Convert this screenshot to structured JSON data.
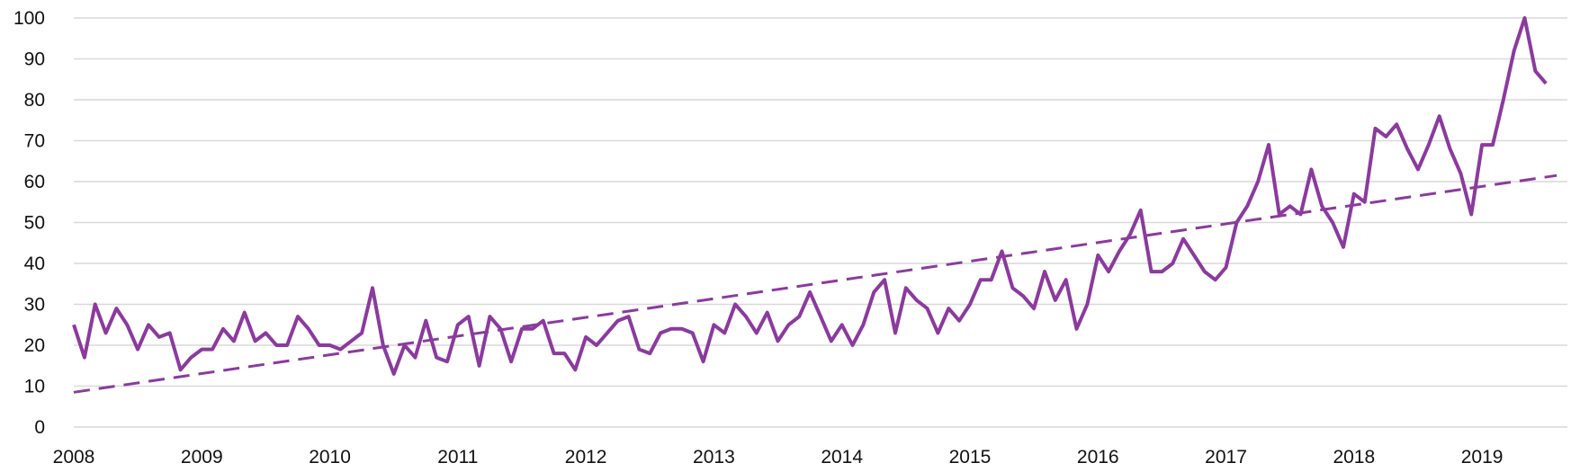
{
  "chart_data": {
    "type": "line",
    "title": "",
    "xlabel": "",
    "ylabel": "",
    "ylim": [
      0,
      100
    ],
    "xlim": [
      2008,
      2019.667
    ],
    "yticks": [
      0,
      10,
      20,
      30,
      40,
      50,
      60,
      70,
      80,
      90,
      100
    ],
    "xticks": [
      "2008",
      "2009",
      "2010",
      "2011",
      "2012",
      "2013",
      "2014",
      "2015",
      "2016",
      "2017",
      "2018",
      "2019"
    ],
    "grid": "horizontal",
    "legend": "none",
    "series": [
      {
        "style": "solid",
        "color": "#8B3A9E",
        "start": "2008-01",
        "frequency": "monthly",
        "values": [
          25,
          17,
          30,
          23,
          29,
          25,
          19,
          25,
          22,
          23,
          14,
          17,
          19,
          19,
          24,
          21,
          28,
          21,
          23,
          20,
          20,
          27,
          24,
          20,
          20,
          19,
          21,
          23,
          34,
          20,
          13,
          20,
          17,
          26,
          17,
          16,
          25,
          27,
          15,
          27,
          24,
          16,
          24,
          24,
          26,
          18,
          18,
          14,
          22,
          20,
          23,
          26,
          27,
          19,
          18,
          23,
          24,
          24,
          23,
          16,
          25,
          23,
          30,
          27,
          23,
          28,
          21,
          25,
          27,
          33,
          27,
          21,
          25,
          20,
          25,
          33,
          36,
          23,
          34,
          31,
          29,
          23,
          29,
          26,
          30,
          36,
          36,
          43,
          34,
          32,
          29,
          38,
          31,
          36,
          24,
          30,
          42,
          38,
          43,
          47,
          53,
          38,
          38,
          40,
          46,
          42,
          38,
          36,
          39,
          50,
          54,
          60,
          69,
          52,
          54,
          52,
          63,
          54,
          50,
          44,
          57,
          55,
          73,
          71,
          74,
          68,
          63,
          69,
          76,
          68,
          62,
          52,
          69,
          69,
          80,
          92,
          100,
          87,
          84
        ]
      },
      {
        "style": "dashed",
        "color": "#8B3A9E",
        "kind": "trendline",
        "x": [
          "2008-01",
          "2019-08"
        ],
        "values": [
          8.5,
          61.5
        ]
      }
    ]
  }
}
